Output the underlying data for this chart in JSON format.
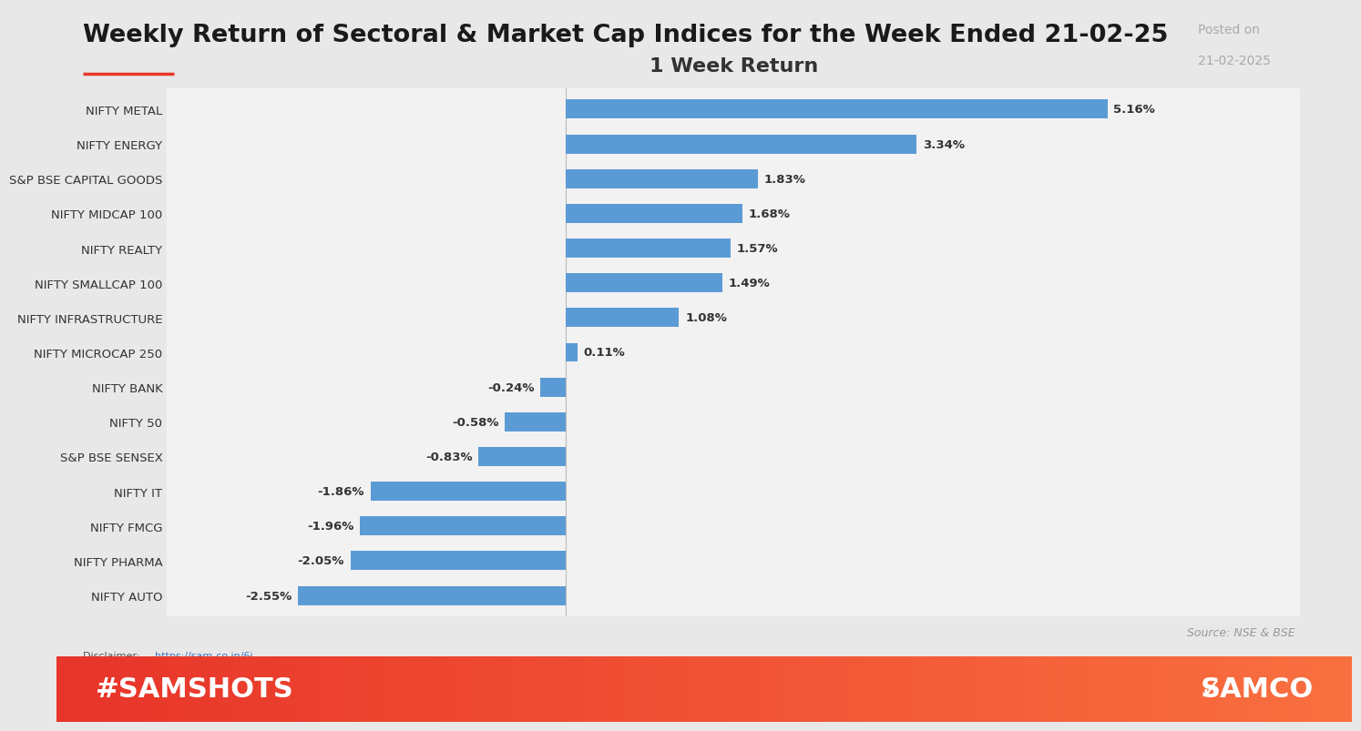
{
  "title": "Weekly Return of Sectoral & Market Cap Indices for the Week Ended 21-02-25",
  "posted_on_label": "Posted on",
  "posted_on_date": "21-02-2025",
  "chart_title": "1 Week Return",
  "source_text": "Source: NSE & BSE",
  "disclaimer_prefix": "Disclaimer: ",
  "disclaimer_url": "https://sam-co.in/6j",
  "hashtag": "#SAMSHOTS",
  "brand": "SAMCO",
  "categories": [
    "NIFTY METAL",
    "NIFTY ENERGY",
    "S&P BSE CAPITAL GOODS",
    "NIFTY MIDCAP 100",
    "NIFTY REALTY",
    "NIFTY SMALLCAP 100",
    "NIFTY INFRASTRUCTURE",
    "NIFTY MICROCAP 250",
    "NIFTY BANK",
    "NIFTY 50",
    "S&P BSE SENSEX",
    "NIFTY IT",
    "NIFTY FMCG",
    "NIFTY PHARMA",
    "NIFTY AUTO"
  ],
  "values": [
    5.16,
    3.34,
    1.83,
    1.68,
    1.57,
    1.49,
    1.08,
    0.11,
    -0.24,
    -0.58,
    -0.83,
    -1.86,
    -1.96,
    -2.05,
    -2.55
  ],
  "bar_color": "#5B9BD5",
  "bg_outer": "#E8E8E8",
  "bg_chart_panel": "#FFFFFF",
  "bg_chart_area": "#F2F2F2",
  "title_color": "#1A1A1A",
  "chart_title_color": "#333333",
  "label_color": "#333333",
  "value_color": "#333333",
  "source_color": "#999999",
  "disclaimer_color": "#555555",
  "url_color": "#4472C4",
  "footer_gradient_left": "#E8352A",
  "footer_gradient_right": "#F97040",
  "footer_text_color": "#FFFFFF",
  "posted_on_color": "#AAAAAA",
  "title_underline_color": "#E8352A"
}
